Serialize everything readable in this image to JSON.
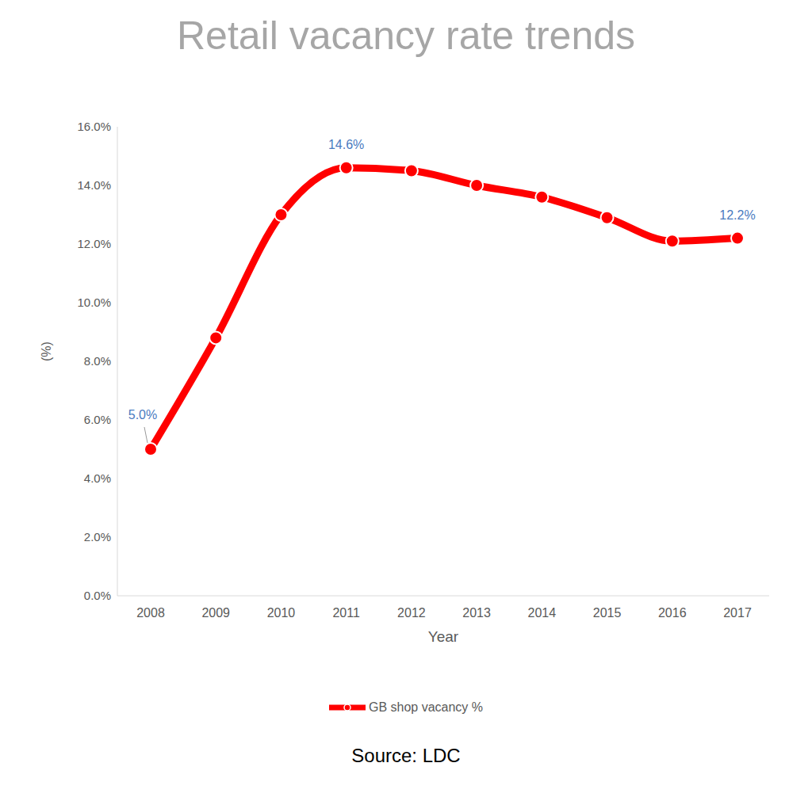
{
  "chart_data": {
    "type": "line",
    "title": "Retail vacancy rate trends",
    "x_label": "Year",
    "y_label": "(%)",
    "source": "Source: LDC",
    "categories": [
      "2008",
      "2009",
      "2010",
      "2011",
      "2012",
      "2013",
      "2014",
      "2015",
      "2016",
      "2017"
    ],
    "series": [
      {
        "name": "GB shop vacancy %",
        "color": "#ff0000",
        "values": [
          5.0,
          8.8,
          13.0,
          14.6,
          14.5,
          14.0,
          13.6,
          12.9,
          12.1,
          12.2
        ],
        "marker": "circle",
        "line_style": "solid"
      }
    ],
    "annotations": [
      {
        "x": "2008",
        "value": 5.0,
        "label": "5.0%"
      },
      {
        "x": "2011",
        "value": 14.6,
        "label": "14.6%"
      },
      {
        "x": "2017",
        "value": 12.2,
        "label": "12.2%"
      }
    ],
    "ylim": [
      0,
      16
    ],
    "yticks": [
      {
        "value": 0,
        "label": "0.0%"
      },
      {
        "value": 2,
        "label": "2.0%"
      },
      {
        "value": 4,
        "label": "4.0%"
      },
      {
        "value": 6,
        "label": "6.0%"
      },
      {
        "value": 8,
        "label": "8.0%"
      },
      {
        "value": 10,
        "label": "10.0%"
      },
      {
        "value": 12,
        "label": "12.0%"
      },
      {
        "value": 14,
        "label": "14.0%"
      },
      {
        "value": 16,
        "label": "16.0%"
      }
    ],
    "grid": false,
    "legend": "bottom"
  }
}
